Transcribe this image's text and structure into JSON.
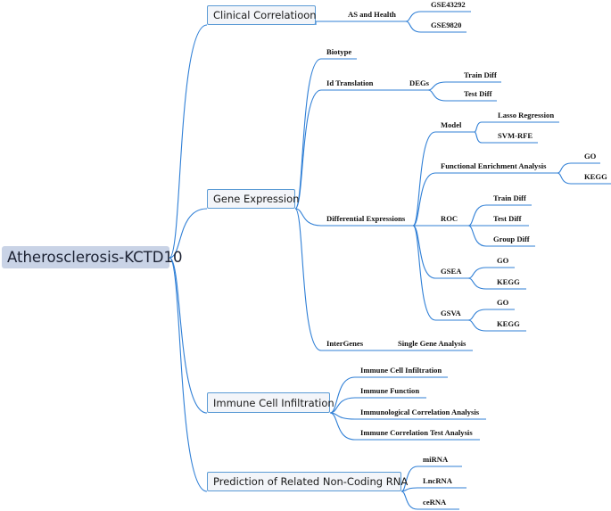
{
  "root": {
    "label": "Atherosclerosis-KCTD10"
  },
  "colors": {
    "line": "#2f7fd6",
    "box_border": "#5b9bd5",
    "box_fill": "#f3f5f9",
    "root_fill": "#c9d3e6"
  },
  "branches": [
    {
      "label": "Clinical Correlatioon",
      "children": [
        {
          "label": "AS and Health",
          "children": [
            {
              "label": "GSE43292"
            },
            {
              "label": "GSE9820"
            }
          ]
        }
      ]
    },
    {
      "label": "Gene Expression",
      "children": [
        {
          "label": "Biotype"
        },
        {
          "label": "Id Translation",
          "sublabel": "DEGs",
          "children": [
            {
              "label": "Train Diff"
            },
            {
              "label": "Test Diff"
            }
          ]
        },
        {
          "label": "Differential Expressions",
          "children": [
            {
              "label": "Model",
              "children": [
                {
                  "label": "Lasso Regression"
                },
                {
                  "label": "SVM-RFE"
                }
              ]
            },
            {
              "label": "Functional Enrichment Analysis",
              "children": [
                {
                  "label": "GO"
                },
                {
                  "label": "KEGG"
                }
              ]
            },
            {
              "label": "ROC",
              "children": [
                {
                  "label": "Train Diff"
                },
                {
                  "label": "Test  Diff"
                },
                {
                  "label": "Group Diff"
                }
              ]
            },
            {
              "label": "GSEA",
              "children": [
                {
                  "label": "GO"
                },
                {
                  "label": "KEGG"
                }
              ]
            },
            {
              "label": "GSVA",
              "children": [
                {
                  "label": "GO"
                },
                {
                  "label": "KEGG"
                }
              ]
            }
          ]
        },
        {
          "label": "InterGenes",
          "sublabel": "Single Gene Analysis"
        }
      ]
    },
    {
      "label": "Immune Cell Infiltration",
      "children": [
        {
          "label": "Immune Cell Infiltration"
        },
        {
          "label": "Immune Function"
        },
        {
          "label": "Immunological Correlation Analysis"
        },
        {
          "label": "Immune Correlation Test Analysis"
        }
      ]
    },
    {
      "label": "Prediction of Related Non-Coding RNA",
      "children": [
        {
          "label": "miRNA"
        },
        {
          "label": "LncRNA"
        },
        {
          "label": "ceRNA"
        }
      ]
    }
  ]
}
